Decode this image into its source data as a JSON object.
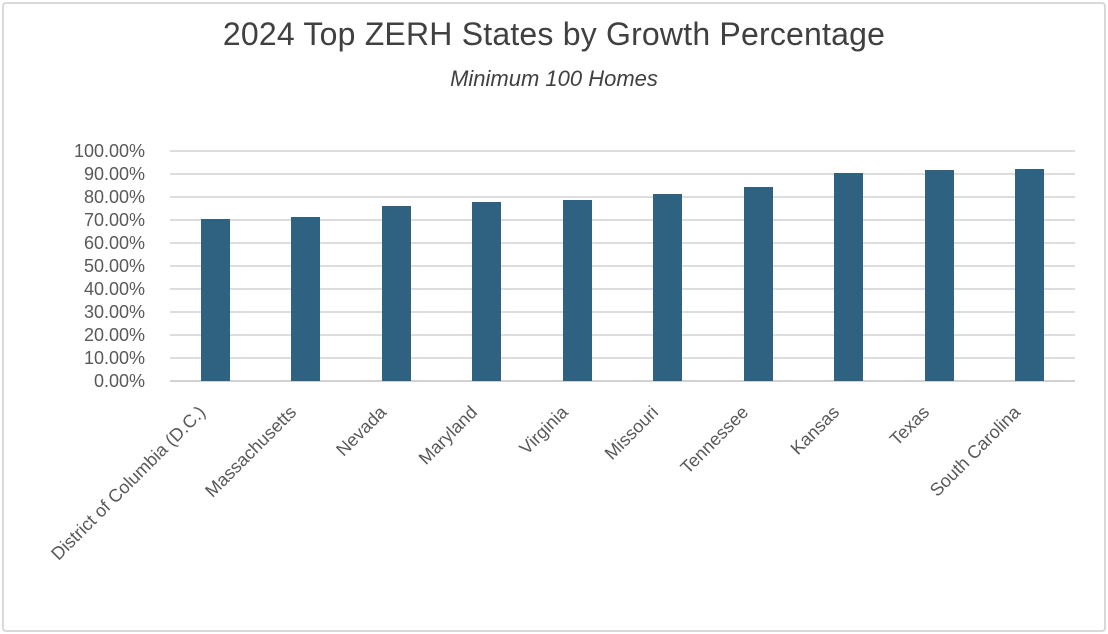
{
  "chart_data": {
    "type": "bar",
    "title": "2024 Top ZERH States by Growth Percentage",
    "subtitle": "Minimum 100 Homes",
    "categories": [
      "District of Columbia (D.C.)",
      "Massachusetts",
      "Nevada",
      "Maryland",
      "Virginia",
      "Missouri",
      "Tennessee",
      "Kansas",
      "Texas",
      "South Carolina"
    ],
    "values": [
      70.3,
      71.4,
      76.3,
      77.7,
      78.6,
      81.3,
      84.4,
      90.3,
      91.7,
      92.2
    ],
    "value_unit": "percent",
    "xlabel": "",
    "ylabel": "",
    "ylim": [
      0,
      100
    ],
    "ytick_step": 10,
    "ytick_labels": [
      "0.00%",
      "10.00%",
      "20.00%",
      "30.00%",
      "40.00%",
      "50.00%",
      "60.00%",
      "70.00%",
      "80.00%",
      "90.00%",
      "100.00%"
    ],
    "grid": true,
    "legend": "none",
    "colors": {
      "bar": "#2F6180",
      "title_text": "#404040",
      "subtitle_text": "#404040",
      "axis_text": "#595959",
      "gridline": "#DDDDDD",
      "axis_line": "#D2D2D2",
      "chart_border": "#D9D9D9",
      "background": "#FFFFFF"
    }
  }
}
